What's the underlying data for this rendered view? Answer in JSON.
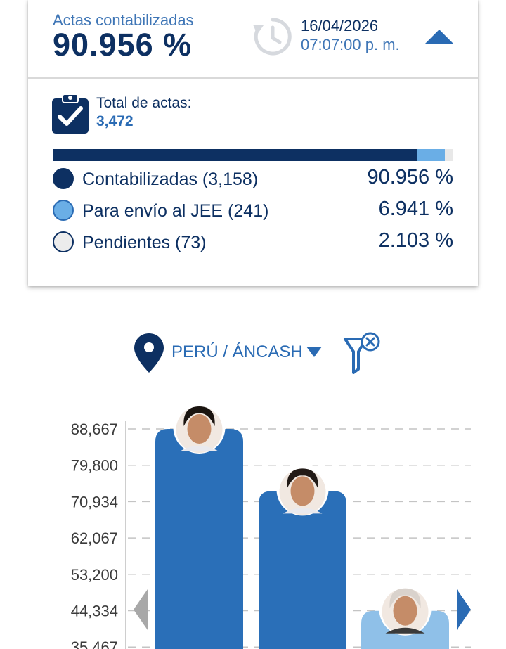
{
  "summary": {
    "label": "Actas contabilizadas",
    "value": "90.956 %",
    "date": "16/04/2026",
    "time": "07:07:00 p. m."
  },
  "totals": {
    "label": "Total de actas:",
    "value": "3,472"
  },
  "progress": {
    "segments": [
      {
        "fraction": 0.90956,
        "color": "#0d3062"
      },
      {
        "fraction": 0.06941,
        "color": "#6aaee6"
      },
      {
        "fraction": 0.02103,
        "color": "#e8e8e8"
      }
    ]
  },
  "legend": [
    {
      "label": "Contabilizadas (3,158)",
      "percent": "90.956 %",
      "color": "#0d3062",
      "border": "#0d3062"
    },
    {
      "label": "Para envío al JEE (241)",
      "percent": "6.941 %",
      "color": "#6aaee6",
      "border": "#2a6bb4"
    },
    {
      "label": "Pendientes (73)",
      "percent": "2.103 %",
      "color": "#ececec",
      "border": "#0d3062"
    }
  ],
  "location": {
    "text": "PERÚ / ÁNCASH"
  },
  "icons": {
    "clock": "history-clock-icon",
    "collapse": "caret-up-icon",
    "clipboard": "clipboard-check-icon",
    "pin": "location-pin-icon",
    "caret": "caret-down-icon",
    "filter": "filter-clear-icon",
    "prev": "chevron-left-icon",
    "next": "chevron-right-icon"
  },
  "chart_data": {
    "type": "bar",
    "y_ticks": [
      "88,667",
      "79,800",
      "70,934",
      "62,067",
      "53,200",
      "44,334",
      "35,467"
    ],
    "ylim": [
      35467,
      88667
    ],
    "grid": true,
    "values": [
      88667,
      73500,
      44300
    ],
    "colors": [
      "#2a6fb8",
      "#2a6fb8",
      "#8fc0e8"
    ]
  }
}
